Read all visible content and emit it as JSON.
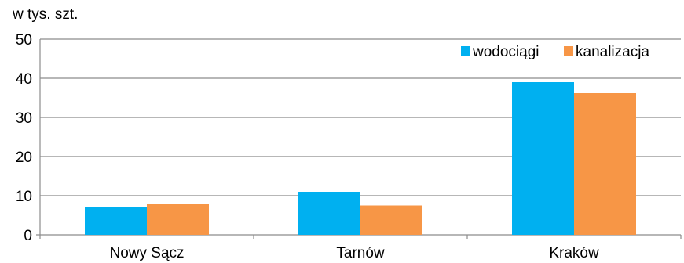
{
  "chart_data": {
    "type": "bar",
    "unit_label": "w tys. szt.",
    "categories": [
      "Nowy Sącz",
      "Tarnów",
      "Kraków"
    ],
    "series": [
      {
        "name": "wodociągi",
        "color": "#00B0F0",
        "values": [
          7.0,
          11.0,
          39.0
        ]
      },
      {
        "name": "kanalizacja",
        "color": "#F79646",
        "values": [
          7.8,
          7.5,
          36.2
        ]
      }
    ],
    "ylim": [
      0,
      50
    ],
    "yticks": [
      0,
      10,
      20,
      30,
      40,
      50
    ],
    "grid": true,
    "legend_position": "top-right"
  }
}
